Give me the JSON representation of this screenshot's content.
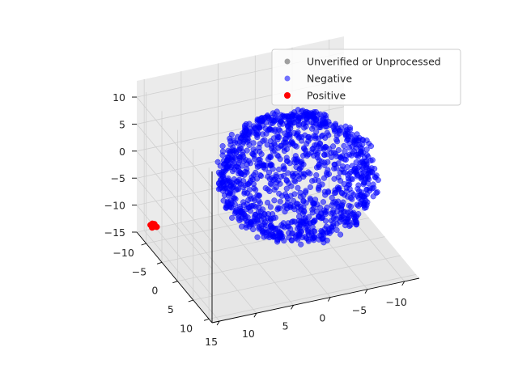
{
  "chart_data": {
    "type": "scatter",
    "projection": "3d",
    "grid": true,
    "legend_placement": "upper-right",
    "title": "",
    "xlabel": "",
    "ylabel": "",
    "zlabel": "",
    "xlim": [
      -12,
      16
    ],
    "ylim": [
      -13,
      11
    ],
    "zlim": [
      -15,
      13
    ],
    "x_ticks": [
      -10,
      -5,
      0,
      5,
      10,
      15
    ],
    "y_ticks": [
      -10,
      -5,
      0,
      5,
      10
    ],
    "z_ticks": [
      -15,
      -10,
      -5,
      0,
      5,
      10
    ],
    "series": [
      {
        "name": "Unverified or Unprocessed",
        "color": "#808080",
        "alpha": 0.75,
        "points": []
      },
      {
        "name": "Negative",
        "color": "#0000ff",
        "alpha": 0.55,
        "cluster": {
          "shape": "sphere-shell",
          "center": [
            -1,
            -2,
            -2
          ],
          "radius": 10,
          "count": 1200
        }
      },
      {
        "name": "Positive",
        "color": "#ff0000",
        "alpha": 1.0,
        "points": [
          [
            15.0,
            -10.0,
            -12.0
          ],
          [
            15.2,
            -9.8,
            -12.1
          ],
          [
            14.8,
            -10.2,
            -11.9
          ],
          [
            15.1,
            -10.1,
            -12.2
          ],
          [
            14.9,
            -9.9,
            -11.8
          ],
          [
            15.3,
            -10.3,
            -12.0
          ],
          [
            14.7,
            -9.7,
            -12.1
          ],
          [
            15.0,
            -10.4,
            -11.9
          ],
          [
            15.2,
            -10.0,
            -12.3
          ],
          [
            14.8,
            -9.6,
            -12.0
          ]
        ]
      }
    ]
  }
}
